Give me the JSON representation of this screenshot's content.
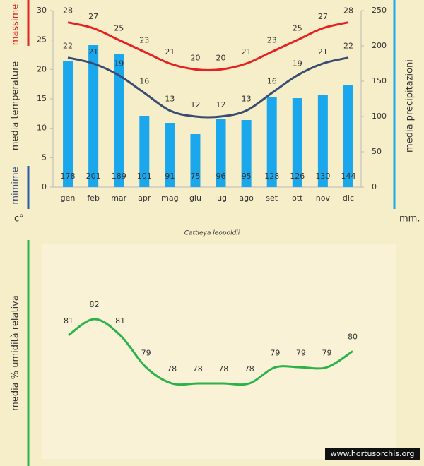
{
  "title": "Cattleya leopoldii",
  "watermark": "www.hortusorchis.org",
  "chart_data": [
    {
      "type": "combo",
      "categories": [
        "gen",
        "feb",
        "mar",
        "apr",
        "mag",
        "giu",
        "lug",
        "ago",
        "set",
        "ott",
        "nov",
        "dic"
      ],
      "ylabel": "media  temperature",
      "y_unit": "c°",
      "y2label": "media  precipitazioni",
      "y2_unit": "mm.",
      "ylim": [
        0,
        30
      ],
      "yticks": [
        0,
        5,
        10,
        15,
        20,
        25,
        30
      ],
      "y2lim": [
        0,
        250
      ],
      "y2ticks": [
        0,
        50,
        100,
        150,
        200,
        250
      ],
      "series": [
        {
          "type": "bar",
          "axis": "y2",
          "color": "#1aa7ec",
          "values": [
            178,
            201,
            189,
            101,
            91,
            75,
            96,
            95,
            128,
            126,
            130,
            144
          ]
        },
        {
          "type": "line",
          "name": "massime",
          "color": "#e52222",
          "values": [
            28,
            27,
            25,
            23,
            21,
            20,
            20,
            21,
            23,
            25,
            27,
            28
          ]
        },
        {
          "type": "line",
          "name": "mimime",
          "color": "#3a4c72",
          "values": [
            22,
            21,
            19,
            16,
            13,
            12,
            12,
            13,
            16,
            19,
            21,
            22
          ]
        }
      ]
    },
    {
      "type": "line",
      "ylabel": "media % umidità relativa",
      "series": [
        {
          "color": "#2bb34a",
          "values": [
            81,
            82,
            81,
            79,
            78,
            78,
            78,
            78,
            79,
            79,
            79,
            80
          ]
        }
      ]
    }
  ]
}
